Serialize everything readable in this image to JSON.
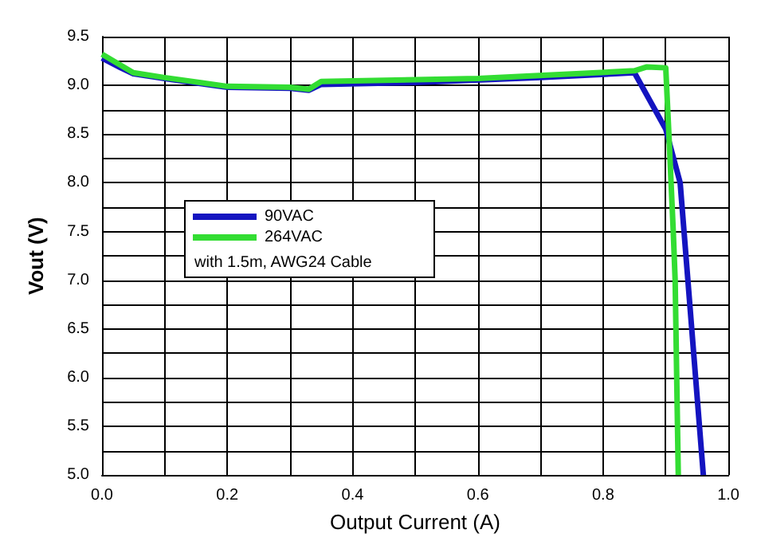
{
  "chart_data": {
    "type": "line",
    "xlabel": "Output Current (A)",
    "ylabel": "Vout (V)",
    "xlim": [
      0,
      1
    ],
    "ylim": [
      5,
      9.5
    ],
    "xticks": [
      {
        "value": 0,
        "label": "0.0"
      },
      {
        "value": 0.1,
        "label": null
      },
      {
        "value": 0.2,
        "label": "0.2"
      },
      {
        "value": 0.3,
        "label": null
      },
      {
        "value": 0.4,
        "label": "0.4"
      },
      {
        "value": 0.5,
        "label": null
      },
      {
        "value": 0.6,
        "label": "0.6"
      },
      {
        "value": 0.7,
        "label": null
      },
      {
        "value": 0.8,
        "label": "0.8"
      },
      {
        "value": 0.9,
        "label": null
      },
      {
        "value": 1,
        "label": "1.0"
      }
    ],
    "yticks": [
      {
        "value": 5,
        "label": "5.0"
      },
      {
        "value": 5.25,
        "label": null
      },
      {
        "value": 5.5,
        "label": "5.5"
      },
      {
        "value": 5.75,
        "label": null
      },
      {
        "value": 6,
        "label": "6.0"
      },
      {
        "value": 6.25,
        "label": null
      },
      {
        "value": 6.5,
        "label": "6.5"
      },
      {
        "value": 6.75,
        "label": null
      },
      {
        "value": 7,
        "label": "7.0"
      },
      {
        "value": 7.25,
        "label": null
      },
      {
        "value": 7.5,
        "label": "7.5"
      },
      {
        "value": 7.75,
        "label": null
      },
      {
        "value": 8,
        "label": "8.0"
      },
      {
        "value": 8.25,
        "label": null
      },
      {
        "value": 8.5,
        "label": "8.5"
      },
      {
        "value": 8.75,
        "label": null
      },
      {
        "value": 9,
        "label": "9.0"
      },
      {
        "value": 9.25,
        "label": null
      },
      {
        "value": 9.5,
        "label": "9.5"
      }
    ],
    "grid": true,
    "legend": "left",
    "marker": "none",
    "line_style": "solid",
    "annotations": [
      "with 1.5m, AWG24 Cable"
    ],
    "series": [
      {
        "name": "90VAC",
        "color": "#1414c0",
        "x": [
          0,
          0.03,
          0.05,
          0.1,
          0.2,
          0.3,
          0.33,
          0.35,
          0.5,
          0.7,
          0.85,
          0.9,
          0.923,
          0.96
        ],
        "values": [
          9.28,
          9.18,
          9.12,
          9.07,
          8.98,
          8.97,
          8.95,
          9.01,
          9.03,
          9.08,
          9.13,
          8.55,
          8.0,
          5.0
        ]
      },
      {
        "name": "264VAC",
        "color": "#33dd33",
        "x": [
          0,
          0.05,
          0.1,
          0.2,
          0.3,
          0.33,
          0.35,
          0.6,
          0.85,
          0.87,
          0.9,
          0.905,
          0.912,
          0.915,
          0.92
        ],
        "values": [
          9.32,
          9.13,
          9.08,
          8.99,
          8.98,
          8.96,
          9.04,
          9.07,
          9.15,
          9.19,
          9.18,
          8.5,
          7.5,
          7.0,
          5.0
        ]
      }
    ]
  }
}
